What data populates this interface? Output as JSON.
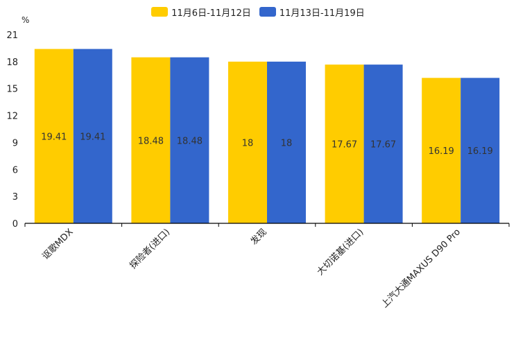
{
  "chart_data": {
    "type": "bar",
    "unit": "%",
    "categories": [
      "讴歌MDX",
      "探险者(进口)",
      "发现",
      "大切诺基(进口)",
      "上汽大通MAXUS D90 Pro"
    ],
    "series": [
      {
        "name": "11月6日-11月12日",
        "color": "#ffcc00",
        "values": [
          19.41,
          18.48,
          18,
          17.67,
          16.19
        ]
      },
      {
        "name": "11月13日-11月19日",
        "color": "#3366cc",
        "values": [
          19.41,
          18.48,
          18,
          17.67,
          16.19
        ]
      }
    ],
    "ylim": [
      0,
      21
    ],
    "yticks": [
      0,
      3,
      6,
      9,
      12,
      15,
      18,
      21
    ],
    "value_labels": [
      [
        "19.41",
        "18.48",
        "18",
        "17.67",
        "16.19"
      ],
      [
        "19.41",
        "18.48",
        "18",
        "17.67",
        "16.19"
      ]
    ],
    "legend_position": "top-center"
  }
}
